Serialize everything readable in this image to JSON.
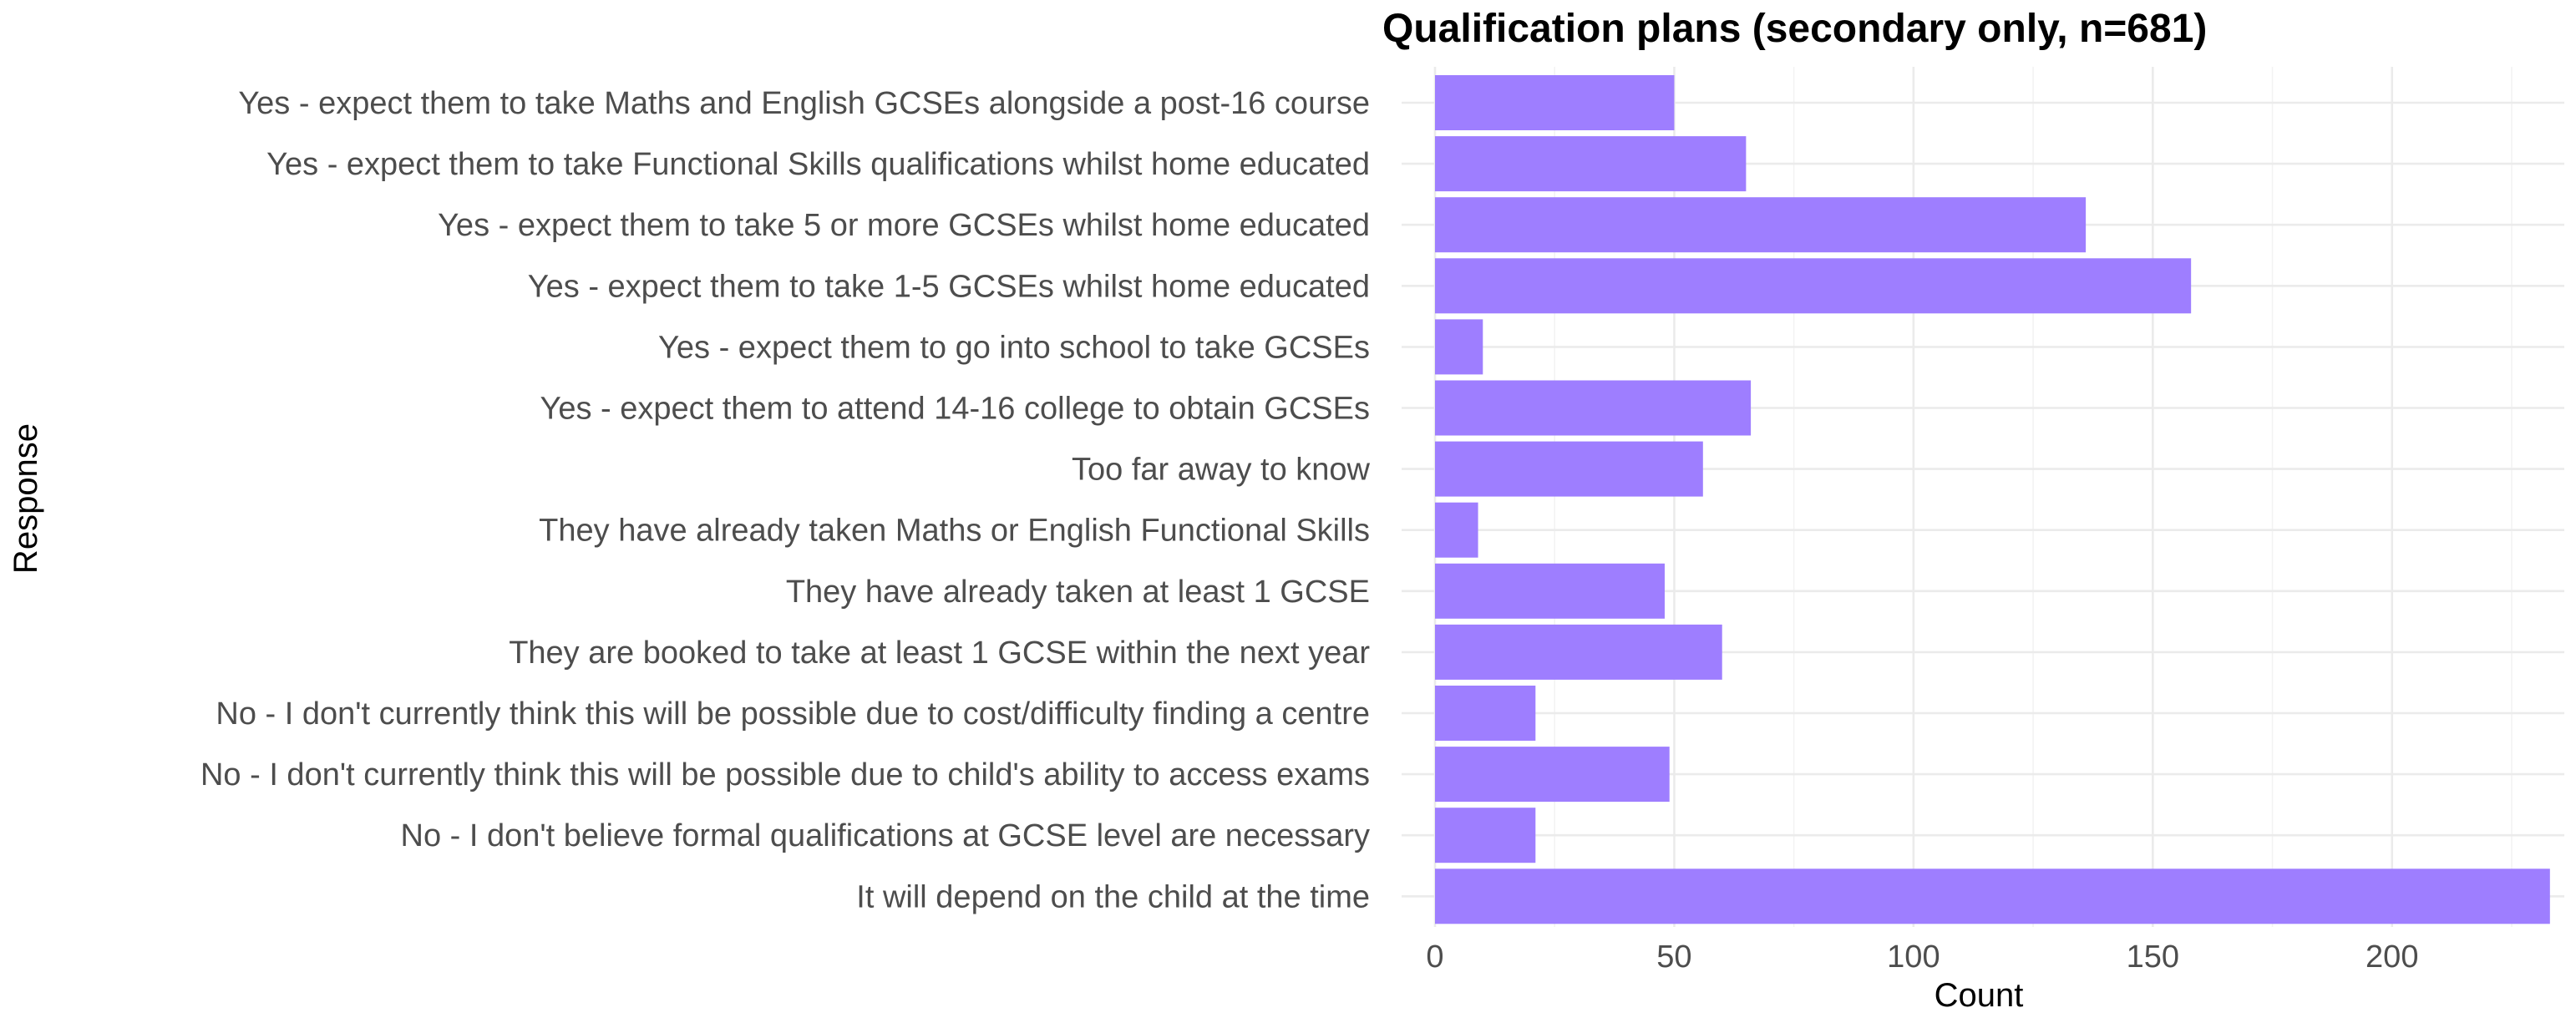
{
  "chart_data": {
    "type": "bar",
    "orientation": "horizontal",
    "title": "Qualification plans (secondary only, n=681)",
    "xlabel": "Count",
    "ylabel": "Response",
    "xlim": [
      0,
      236
    ],
    "xticks": [
      0,
      50,
      100,
      150,
      200
    ],
    "grid": true,
    "legend": "none",
    "bar_color": "#9e7eff",
    "categories": [
      "Yes - expect them to take Maths and English GCSEs alongside a post-16 course",
      "Yes - expect them to take Functional Skills qualifications whilst home educated",
      "Yes - expect them to take 5 or more GCSEs whilst home educated",
      "Yes - expect them to take 1-5 GCSEs whilst home educated",
      "Yes - expect them to go into school to take GCSEs",
      "Yes - expect them to attend 14-16 college to obtain GCSEs",
      "Too far away to know",
      "They have already taken Maths or English Functional Skills",
      "They have already taken at least 1 GCSE",
      "They are booked to take at least 1 GCSE within the next year",
      "No - I don't currently think this will be possible due to cost/difficulty finding a centre",
      "No - I don't currently think this will be possible due to child's ability to access exams",
      "No - I don't believe formal qualifications at GCSE level are necessary",
      "It will depend on the child at the time"
    ],
    "values": [
      50,
      65,
      136,
      158,
      10,
      66,
      56,
      9,
      48,
      60,
      21,
      49,
      21,
      233
    ]
  }
}
